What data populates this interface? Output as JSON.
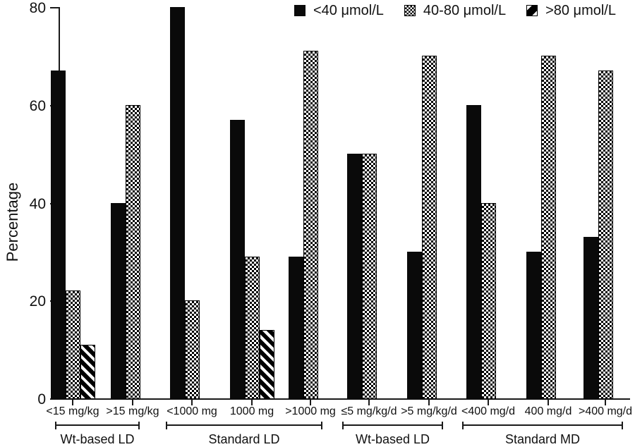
{
  "chart_data": {
    "type": "bar",
    "title": "",
    "xlabel": "",
    "ylabel": "Percentage",
    "ylim": [
      0,
      80
    ],
    "yticks": [
      0,
      20,
      40,
      60,
      80
    ],
    "grid": false,
    "legend_position": "top-right",
    "categories": [
      "<15 mg/kg",
      ">15 mg/kg",
      "<1000 mg",
      "1000 mg",
      ">1000 mg",
      "≤5 mg/kg/d",
      ">5 mg/kg/d",
      "<400 mg/d",
      "400 mg/d",
      ">400 mg/d"
    ],
    "series": [
      {
        "name": "<40 μmol/L",
        "pattern": "solid",
        "values": [
          67,
          40,
          80,
          57,
          29,
          50,
          30,
          60,
          30,
          33
        ]
      },
      {
        "name": "40-80 μmol/L",
        "pattern": "checker",
        "values": [
          22,
          60,
          20,
          29,
          71,
          50,
          70,
          40,
          70,
          67
        ]
      },
      {
        "name": ">80 μmol/L",
        "pattern": "hatch",
        "values": [
          11,
          null,
          null,
          14,
          null,
          null,
          null,
          null,
          null,
          null
        ]
      }
    ],
    "group_brackets": [
      {
        "label": "Wt-based LD",
        "from": 0,
        "to": 1
      },
      {
        "label": "Standard LD",
        "from": 2,
        "to": 4
      },
      {
        "label": "Wt-based LD",
        "from": 5,
        "to": 6
      },
      {
        "label": "Standard MD",
        "from": 7,
        "to": 9
      }
    ],
    "colors": {
      "bar": "#000000",
      "background": "#ffffff",
      "axis": "#1a1a1a"
    }
  }
}
